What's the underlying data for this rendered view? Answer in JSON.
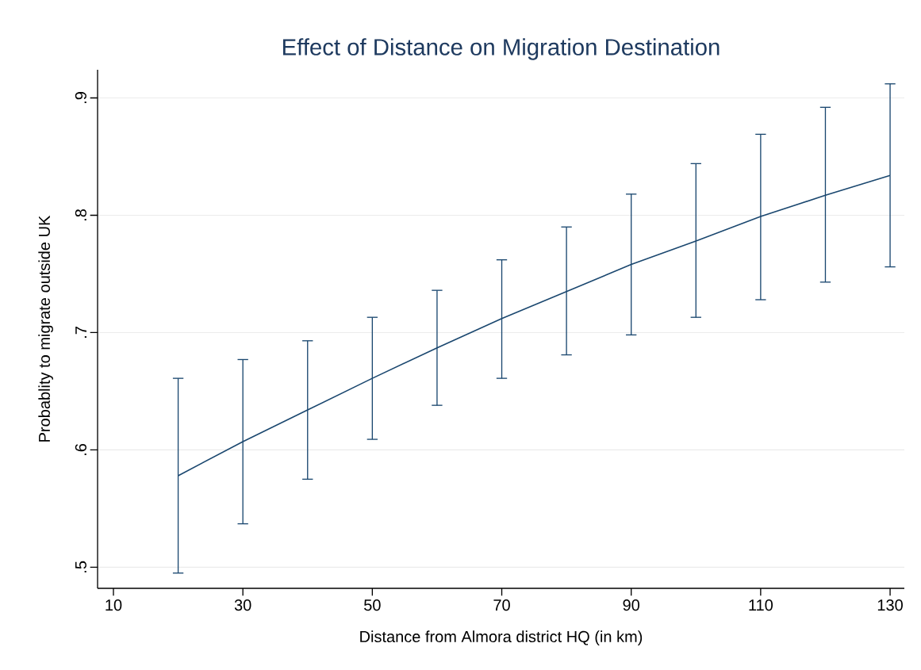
{
  "chart_data": {
    "type": "line",
    "title": "Effect of Distance on Migration Destination",
    "xlabel": "Distance from Almora district HQ (in km)",
    "ylabel": "Probablity to migrate outside UK",
    "x": [
      20,
      30,
      40,
      50,
      60,
      70,
      80,
      90,
      100,
      110,
      120,
      130
    ],
    "series": [
      {
        "color": "#1a476f",
        "values": [
          0.578,
          0.607,
          0.634,
          0.661,
          0.687,
          0.712,
          0.735,
          0.758,
          0.778,
          0.799,
          0.817,
          0.834
        ],
        "errors": [
          [
            0.495,
            0.661
          ],
          [
            0.537,
            0.677
          ],
          [
            0.575,
            0.693
          ],
          [
            0.609,
            0.713
          ],
          [
            0.638,
            0.736
          ],
          [
            0.661,
            0.762
          ],
          [
            0.681,
            0.79
          ],
          [
            0.698,
            0.818
          ],
          [
            0.713,
            0.844
          ],
          [
            0.728,
            0.869
          ],
          [
            0.743,
            0.892
          ],
          [
            0.756,
            0.912
          ]
        ]
      }
    ],
    "xlim": [
      7.55,
      132.2
    ],
    "ylim": [
      0.482,
      0.924
    ],
    "xticks": [
      10,
      30,
      50,
      70,
      90,
      110,
      130
    ],
    "yticks": [
      {
        "value": 0.5,
        "label": ".5"
      },
      {
        "value": 0.6,
        "label": ".6"
      },
      {
        "value": 0.7,
        "label": ".7"
      },
      {
        "value": 0.8,
        "label": ".8"
      },
      {
        "value": 0.9,
        "label": ".9"
      }
    ],
    "grid": "y",
    "marker": "none",
    "line_style": "solid"
  }
}
